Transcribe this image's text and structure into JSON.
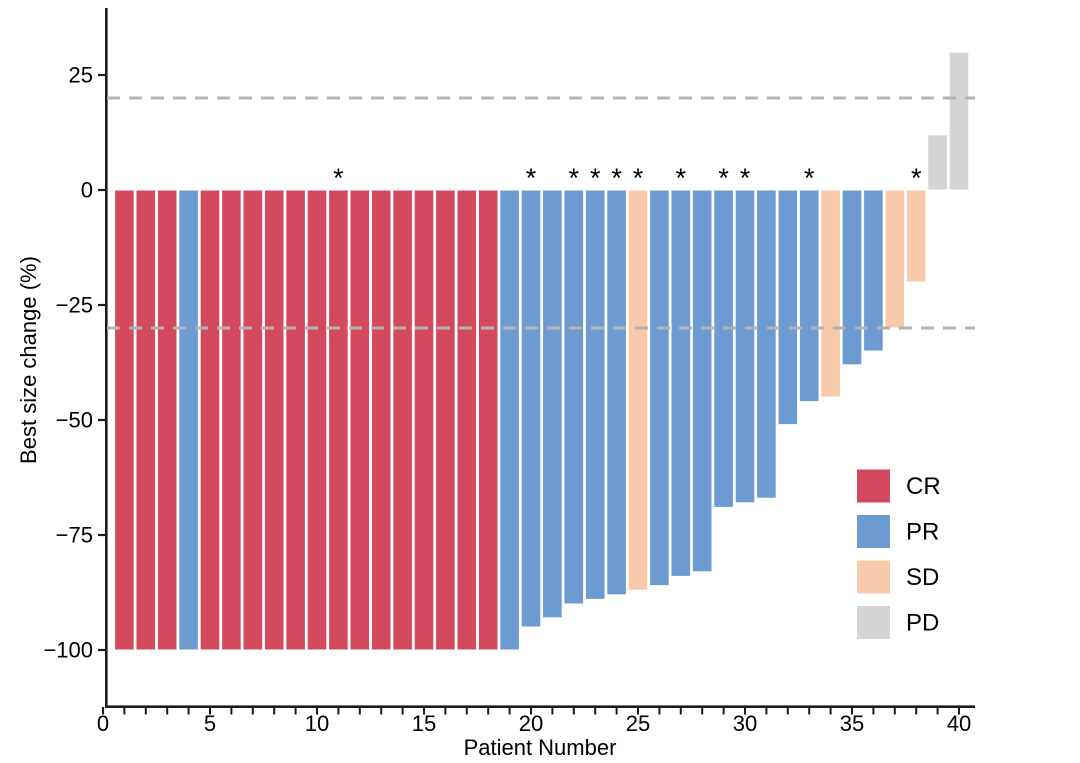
{
  "chart_data": {
    "type": "bar",
    "title": "",
    "xlabel": "Patient Number",
    "ylabel": "Best size change (%)",
    "ylim": [
      -112,
      38
    ],
    "xlim": [
      0,
      40.7
    ],
    "grid": false,
    "legend_position": "right-middle",
    "asterisk_symbol": "*",
    "x_axis": {
      "min": 0,
      "max": 40,
      "minor_tick_every": 1
    },
    "yticks": [
      {
        "v": 25,
        "label": "25"
      },
      {
        "v": 0,
        "label": "0"
      },
      {
        "v": -25,
        "label": "−25"
      },
      {
        "v": -50,
        "label": "−50"
      },
      {
        "v": -75,
        "label": "−75"
      },
      {
        "v": -100,
        "label": "−100"
      }
    ],
    "xticks": [
      {
        "v": 0,
        "label": "0"
      },
      {
        "v": 5,
        "label": "5"
      },
      {
        "v": 10,
        "label": "10"
      },
      {
        "v": 15,
        "label": "15"
      },
      {
        "v": 20,
        "label": "20"
      },
      {
        "v": 25,
        "label": "25"
      },
      {
        "v": 30,
        "label": "30"
      },
      {
        "v": 35,
        "label": "35"
      },
      {
        "v": 40,
        "label": "40"
      }
    ],
    "reference_lines": [
      {
        "value": 20,
        "style": "dashed",
        "color": "#B3B3B3"
      },
      {
        "value": -30,
        "style": "dashed",
        "color": "#B3B3B3"
      }
    ],
    "legend": [
      {
        "label": "CR",
        "color": "#D5495E"
      },
      {
        "label": "PR",
        "color": "#6B9BD0"
      },
      {
        "label": "SD",
        "color": "#F9C9AC"
      },
      {
        "label": "PD",
        "color": "#D4D4D4"
      }
    ],
    "patients": [
      {
        "patient": 1,
        "value": -100,
        "response": "CR",
        "asterisk": false
      },
      {
        "patient": 2,
        "value": -100,
        "response": "CR",
        "asterisk": false
      },
      {
        "patient": 3,
        "value": -100,
        "response": "CR",
        "asterisk": false
      },
      {
        "patient": 4,
        "value": -100,
        "response": "PR",
        "asterisk": false
      },
      {
        "patient": 5,
        "value": -100,
        "response": "CR",
        "asterisk": false
      },
      {
        "patient": 6,
        "value": -100,
        "response": "CR",
        "asterisk": false
      },
      {
        "patient": 7,
        "value": -100,
        "response": "CR",
        "asterisk": false
      },
      {
        "patient": 8,
        "value": -100,
        "response": "CR",
        "asterisk": false
      },
      {
        "patient": 9,
        "value": -100,
        "response": "CR",
        "asterisk": false
      },
      {
        "patient": 10,
        "value": -100,
        "response": "CR",
        "asterisk": false
      },
      {
        "patient": 11,
        "value": -100,
        "response": "CR",
        "asterisk": true
      },
      {
        "patient": 12,
        "value": -100,
        "response": "CR",
        "asterisk": false
      },
      {
        "patient": 13,
        "value": -100,
        "response": "CR",
        "asterisk": false
      },
      {
        "patient": 14,
        "value": -100,
        "response": "CR",
        "asterisk": false
      },
      {
        "patient": 15,
        "value": -100,
        "response": "CR",
        "asterisk": false
      },
      {
        "patient": 16,
        "value": -100,
        "response": "CR",
        "asterisk": false
      },
      {
        "patient": 17,
        "value": -100,
        "response": "CR",
        "asterisk": false
      },
      {
        "patient": 18,
        "value": -100,
        "response": "CR",
        "asterisk": false
      },
      {
        "patient": 19,
        "value": -100,
        "response": "PR",
        "asterisk": false
      },
      {
        "patient": 20,
        "value": -95,
        "response": "PR",
        "asterisk": true
      },
      {
        "patient": 21,
        "value": -93,
        "response": "PR",
        "asterisk": false
      },
      {
        "patient": 22,
        "value": -90,
        "response": "PR",
        "asterisk": true
      },
      {
        "patient": 23,
        "value": -89,
        "response": "PR",
        "asterisk": true
      },
      {
        "patient": 24,
        "value": -88,
        "response": "PR",
        "asterisk": true
      },
      {
        "patient": 25,
        "value": -87,
        "response": "SD",
        "asterisk": true
      },
      {
        "patient": 26,
        "value": -86,
        "response": "PR",
        "asterisk": false
      },
      {
        "patient": 27,
        "value": -84,
        "response": "PR",
        "asterisk": true
      },
      {
        "patient": 28,
        "value": -83,
        "response": "PR",
        "asterisk": false
      },
      {
        "patient": 29,
        "value": -69,
        "response": "PR",
        "asterisk": true
      },
      {
        "patient": 30,
        "value": -68,
        "response": "PR",
        "asterisk": true
      },
      {
        "patient": 31,
        "value": -67,
        "response": "PR",
        "asterisk": false
      },
      {
        "patient": 32,
        "value": -51,
        "response": "PR",
        "asterisk": false
      },
      {
        "patient": 33,
        "value": -46,
        "response": "PR",
        "asterisk": true
      },
      {
        "patient": 34,
        "value": -45,
        "response": "SD",
        "asterisk": false
      },
      {
        "patient": 35,
        "value": -38,
        "response": "PR",
        "asterisk": false
      },
      {
        "patient": 36,
        "value": -35,
        "response": "PR",
        "asterisk": false
      },
      {
        "patient": 37,
        "value": -30,
        "response": "SD",
        "asterisk": false
      },
      {
        "patient": 38,
        "value": -20,
        "response": "SD",
        "asterisk": true
      },
      {
        "patient": 39,
        "value": 12,
        "response": "PD",
        "asterisk": false
      },
      {
        "patient": 40,
        "value": 30,
        "response": "PD",
        "asterisk": false
      }
    ]
  },
  "colors": {
    "background": "#FFFFFF",
    "axis": "#1A1A1A",
    "text": "#000000",
    "bar_stroke": "#FFFFFF",
    "cr": "#D5495E",
    "pr": "#6B9BD0",
    "sd": "#F9C9AC",
    "pd": "#D4D4D4",
    "dashed_line": "#B3B3B3"
  }
}
